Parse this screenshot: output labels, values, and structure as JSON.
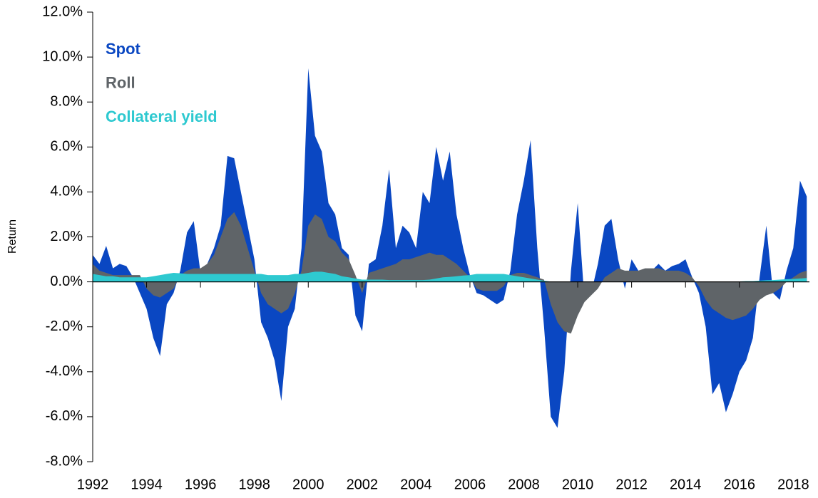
{
  "chart_data": {
    "type": "area",
    "ylabel": "Return",
    "x": [
      1992,
      1992.25,
      1992.5,
      1992.75,
      1993,
      1993.25,
      1993.5,
      1993.75,
      1994,
      1994.25,
      1994.5,
      1994.75,
      1995,
      1995.25,
      1995.5,
      1995.75,
      1996,
      1996.25,
      1996.5,
      1996.75,
      1997,
      1997.25,
      1997.5,
      1997.75,
      1998,
      1998.25,
      1998.5,
      1998.75,
      1999,
      1999.25,
      1999.5,
      1999.75,
      2000,
      2000.25,
      2000.5,
      2000.75,
      2001,
      2001.25,
      2001.5,
      2001.75,
      2002,
      2002.25,
      2002.5,
      2002.75,
      2003,
      2003.25,
      2003.5,
      2003.75,
      2004,
      2004.25,
      2004.5,
      2004.75,
      2005,
      2005.25,
      2005.5,
      2005.75,
      2006,
      2006.25,
      2006.5,
      2006.75,
      2007,
      2007.25,
      2007.5,
      2007.75,
      2008,
      2008.25,
      2008.5,
      2008.75,
      2009,
      2009.25,
      2009.5,
      2009.75,
      2010,
      2010.25,
      2010.5,
      2010.75,
      2011,
      2011.25,
      2011.5,
      2011.75,
      2012,
      2012.25,
      2012.5,
      2012.75,
      2013,
      2013.25,
      2013.5,
      2013.75,
      2014,
      2014.25,
      2014.5,
      2014.75,
      2015,
      2015.25,
      2015.5,
      2015.75,
      2016,
      2016.25,
      2016.5,
      2016.75,
      2017,
      2017.25,
      2017.5,
      2017.75,
      2018,
      2018.25,
      2018.5
    ],
    "series": [
      {
        "name": "Spot",
        "color": "#0a47c2",
        "values": [
          1.2,
          0.8,
          1.6,
          0.6,
          0.8,
          0.7,
          0.2,
          -0.5,
          -1.2,
          -2.5,
          -3.3,
          -1.0,
          -0.5,
          0.5,
          2.2,
          2.7,
          0.4,
          0.8,
          1.5,
          2.5,
          5.6,
          5.5,
          4.0,
          2.5,
          1.0,
          -1.8,
          -2.5,
          -3.5,
          -5.3,
          -2.0,
          -1.2,
          1.5,
          9.5,
          6.5,
          5.8,
          3.5,
          3.0,
          1.5,
          1.2,
          -1.5,
          -2.2,
          0.8,
          1.0,
          2.5,
          5.0,
          1.5,
          2.5,
          2.2,
          1.5,
          4.0,
          3.5,
          6.0,
          4.5,
          5.8,
          3.0,
          1.5,
          0.3,
          -0.5,
          -0.6,
          -0.8,
          -1.0,
          -0.8,
          0.5,
          3.0,
          4.5,
          6.3,
          1.5,
          -2.0,
          -6.0,
          -6.5,
          -4.0,
          0.5,
          3.5,
          -0.8,
          -0.5,
          0.8,
          2.5,
          2.8,
          1.0,
          -0.3,
          1.0,
          0.5,
          0.3,
          0.5,
          0.8,
          0.5,
          0.7,
          0.8,
          1.0,
          0.2,
          -0.5,
          -2.0,
          -5.0,
          -4.5,
          -5.8,
          -5.0,
          -4.0,
          -3.5,
          -2.5,
          0.2,
          2.5,
          -0.5,
          -0.8,
          0.5,
          1.5,
          4.5,
          3.8
        ]
      },
      {
        "name": "Roll",
        "color": "#5f6468",
        "values": [
          0.8,
          0.5,
          0.4,
          0.3,
          0.3,
          0.3,
          0.3,
          0.3,
          -0.3,
          -0.6,
          -0.7,
          -0.5,
          -0.3,
          0.3,
          0.5,
          0.6,
          0.6,
          0.8,
          1.2,
          2.0,
          2.8,
          3.1,
          2.5,
          1.5,
          0.5,
          -0.5,
          -1.0,
          -1.2,
          -1.4,
          -1.2,
          -0.5,
          0.5,
          2.5,
          3.0,
          2.8,
          2.0,
          1.8,
          1.3,
          1.0,
          0.3,
          -0.5,
          0.4,
          0.5,
          0.6,
          0.7,
          0.8,
          1.0,
          1.0,
          1.1,
          1.2,
          1.3,
          1.2,
          1.2,
          1.0,
          0.8,
          0.5,
          0.2,
          -0.3,
          -0.4,
          -0.4,
          -0.4,
          -0.2,
          0.3,
          0.4,
          0.4,
          0.3,
          0.2,
          0.1,
          -1.0,
          -1.8,
          -2.2,
          -2.3,
          -1.5,
          -0.9,
          -0.6,
          -0.3,
          0.2,
          0.4,
          0.6,
          0.5,
          0.5,
          0.5,
          0.6,
          0.6,
          0.6,
          0.5,
          0.5,
          0.5,
          0.4,
          0.2,
          -0.2,
          -0.8,
          -1.2,
          -1.4,
          -1.6,
          -1.7,
          -1.6,
          -1.5,
          -1.2,
          -0.8,
          -0.6,
          -0.5,
          -0.3,
          0.0,
          0.2,
          0.4,
          0.5
        ]
      },
      {
        "name": "Collateral yield",
        "color": "#2ec9d0",
        "values": [
          0.35,
          0.3,
          0.25,
          0.25,
          0.2,
          0.2,
          0.2,
          0.2,
          0.2,
          0.25,
          0.3,
          0.35,
          0.4,
          0.38,
          0.35,
          0.35,
          0.35,
          0.35,
          0.35,
          0.35,
          0.35,
          0.35,
          0.35,
          0.35,
          0.35,
          0.35,
          0.3,
          0.3,
          0.3,
          0.3,
          0.35,
          0.35,
          0.4,
          0.45,
          0.45,
          0.4,
          0.35,
          0.25,
          0.2,
          0.15,
          0.1,
          0.1,
          0.1,
          0.1,
          0.08,
          0.08,
          0.08,
          0.08,
          0.08,
          0.08,
          0.1,
          0.15,
          0.2,
          0.22,
          0.25,
          0.28,
          0.3,
          0.35,
          0.35,
          0.35,
          0.35,
          0.35,
          0.3,
          0.25,
          0.2,
          0.15,
          0.1,
          0.05,
          0.01,
          0.01,
          0.01,
          0.01,
          0.01,
          0.01,
          0.01,
          0.01,
          0.01,
          0.01,
          0.01,
          0.01,
          0.01,
          0.01,
          0.01,
          0.01,
          0.01,
          0.01,
          0.01,
          0.01,
          0.01,
          0.01,
          0.01,
          0.01,
          0.01,
          0.01,
          0.01,
          0.01,
          0.02,
          0.03,
          0.03,
          0.05,
          0.07,
          0.08,
          0.1,
          0.12,
          0.13,
          0.15,
          0.17
        ]
      }
    ],
    "xlim": [
      1992,
      2018.6
    ],
    "xticks": [
      1992,
      1994,
      1996,
      1998,
      2000,
      2002,
      2004,
      2006,
      2008,
      2010,
      2012,
      2014,
      2016,
      2018
    ],
    "ylim": [
      -8,
      12
    ],
    "yticks": [
      {
        "value": -8,
        "label": "-8.0%"
      },
      {
        "value": -6,
        "label": "-6.0%"
      },
      {
        "value": -4,
        "label": "-4.0%"
      },
      {
        "value": -2,
        "label": "-2.0%"
      },
      {
        "value": 0,
        "label": "0.0%"
      },
      {
        "value": 2,
        "label": "2.0%"
      },
      {
        "value": 4,
        "label": "4.0%"
      },
      {
        "value": 6,
        "label": "6.0%"
      },
      {
        "value": 8,
        "label": "8.0%"
      },
      {
        "value": 10,
        "label": "10.0%"
      },
      {
        "value": 12,
        "label": "12.0%"
      }
    ],
    "legend": "upper left"
  }
}
